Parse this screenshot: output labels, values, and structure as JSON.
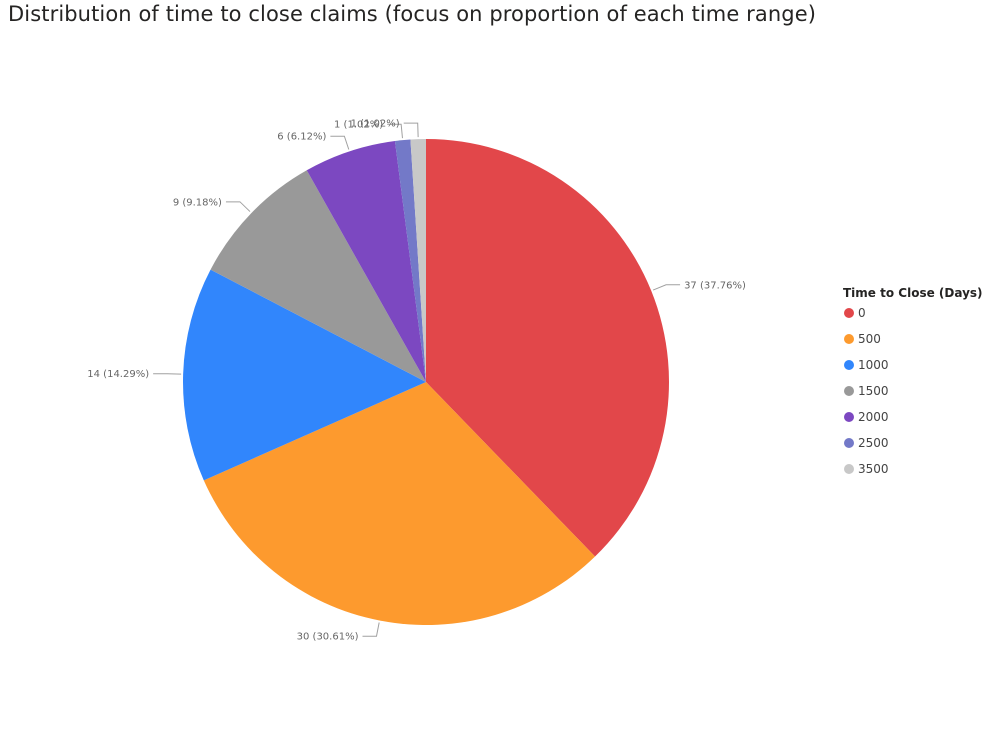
{
  "chart_data": {
    "type": "pie",
    "title": "Distribution of time to close claims (focus on proportion of each time range)",
    "legend": {
      "title": "Time to Close (Days)",
      "placement": "right"
    },
    "slices": [
      {
        "category": "0",
        "value": 37,
        "percent": "37.76%",
        "label": "37 (37.76%)",
        "color": "#e2474a"
      },
      {
        "category": "500",
        "value": 30,
        "percent": "30.61%",
        "label": "30 (30.61%)",
        "color": "#fd9a2e"
      },
      {
        "category": "1000",
        "value": 14,
        "percent": "14.29%",
        "label": "14 (14.29%)",
        "color": "#3186fc"
      },
      {
        "category": "1500",
        "value": 9,
        "percent": "9.18%",
        "label": "9 (9.18%)",
        "color": "#999999"
      },
      {
        "category": "2000",
        "value": 6,
        "percent": "6.12%",
        "label": "6 (6.12%)",
        "color": "#7c48c1"
      },
      {
        "category": "2500",
        "value": 1,
        "percent": "1.02%",
        "label": "1 (1.02%)",
        "color": "#7379c8"
      },
      {
        "category": "3500",
        "value": 1,
        "percent": "1.02%",
        "label": "1 (1.02%)",
        "color": "#c8c8c8"
      }
    ]
  }
}
